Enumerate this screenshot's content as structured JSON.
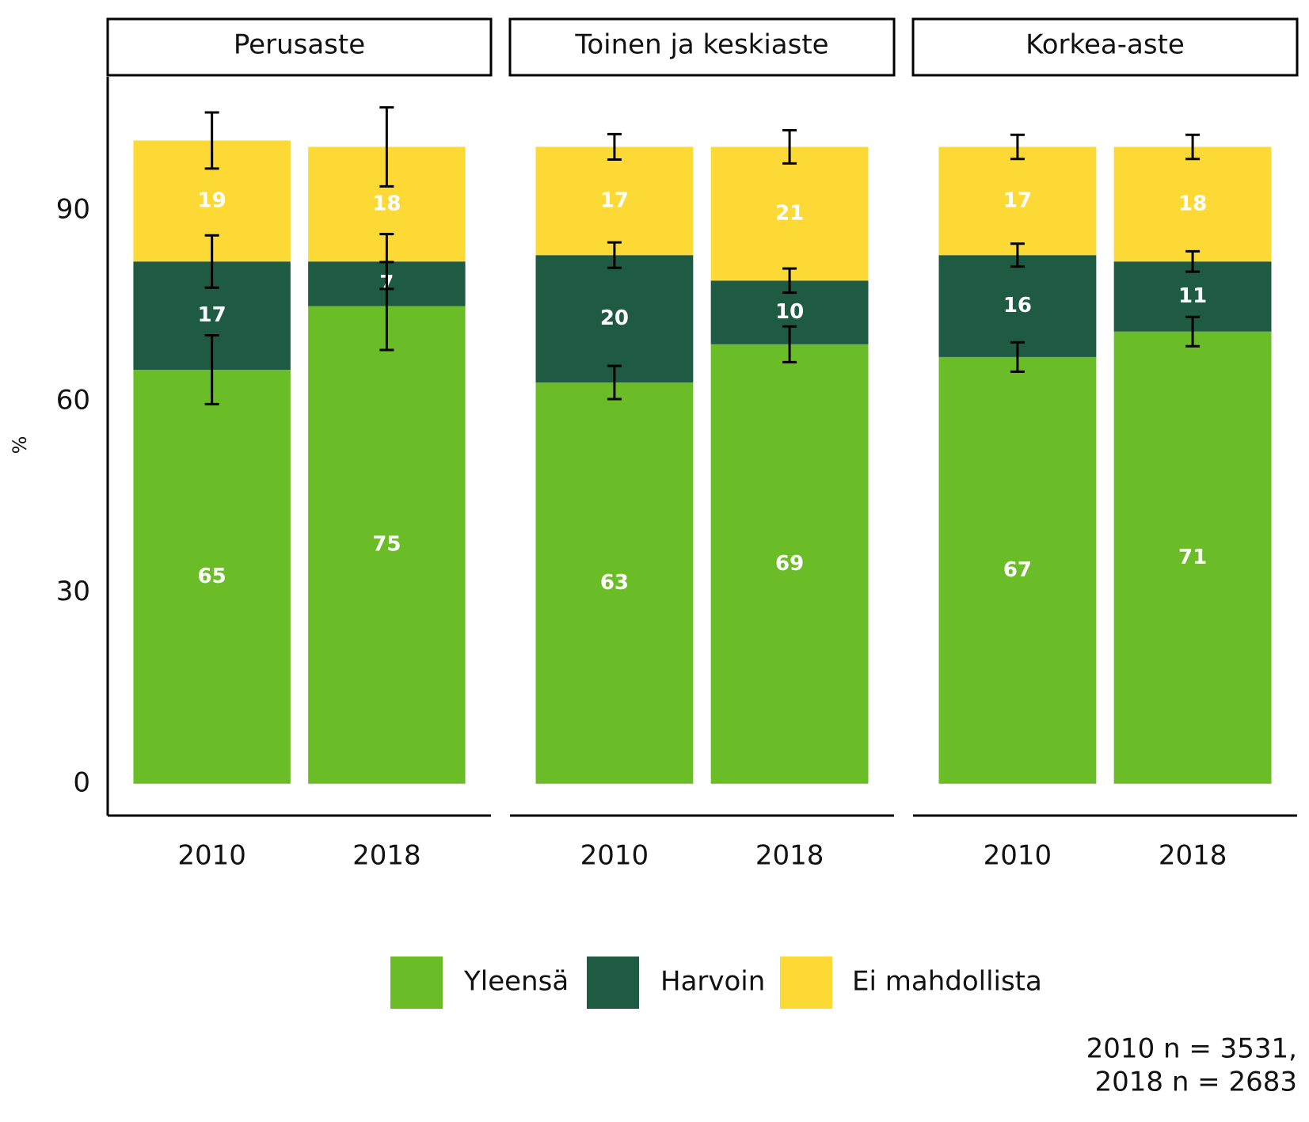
{
  "chart_data": {
    "type": "stacked-bar-errorbar",
    "ylabel": "%",
    "ylim": [
      -5,
      111
    ],
    "yticks": [
      0,
      30,
      60,
      90
    ],
    "series": [
      {
        "name": "Yleensä",
        "color": "#6bbd28"
      },
      {
        "name": "Harvoin",
        "color": "#1f5a42"
      },
      {
        "name": "Ei mahdollista",
        "color": "#fdd935"
      }
    ],
    "panels": [
      {
        "title": "Perusaste",
        "categories": [
          "2010",
          "2018"
        ],
        "values": [
          [
            65,
            75
          ],
          [
            17,
            7
          ],
          [
            19,
            18
          ]
        ],
        "errors": [
          [
            5.4,
            6.9
          ],
          [
            4.1,
            4.3
          ],
          [
            4.4,
            6.2
          ]
        ]
      },
      {
        "title": "Toinen ja keskiaste",
        "categories": [
          "2010",
          "2018"
        ],
        "values": [
          [
            63,
            69
          ],
          [
            20,
            10
          ],
          [
            17,
            21
          ]
        ],
        "errors": [
          [
            2.6,
            2.8
          ],
          [
            2.0,
            1.9
          ],
          [
            2.0,
            2.6
          ]
        ]
      },
      {
        "title": "Korkea-aste",
        "categories": [
          "2010",
          "2018"
        ],
        "values": [
          [
            67,
            71
          ],
          [
            16,
            11
          ],
          [
            17,
            18
          ]
        ],
        "errors": [
          [
            2.3,
            2.3
          ],
          [
            1.8,
            1.6
          ],
          [
            1.9,
            1.9
          ]
        ]
      }
    ],
    "note": [
      "2010 n = 3531,",
      "2018 n = 2683"
    ]
  }
}
